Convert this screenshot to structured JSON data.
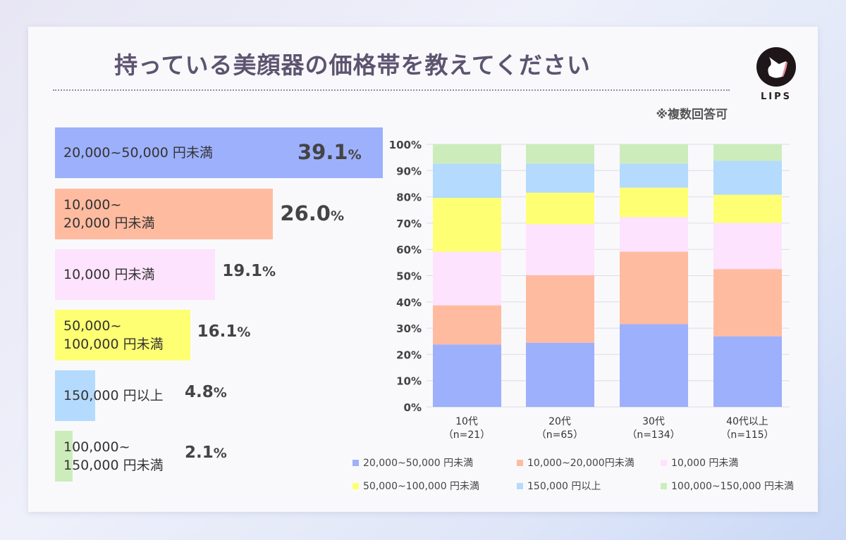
{
  "title": "持っている美顔器の価格帯を教えてください",
  "note": "※複数回答可",
  "logo": "LIPS",
  "colors": {
    "20000-50000": "#9db0fc",
    "10000-20000": "#ffbba0",
    "under10000": "#fde3fd",
    "50000-100000": "#feff73",
    "over150000": "#b4dafe",
    "100000-150000": "#ccedbb"
  },
  "chart_data": [
    {
      "type": "bar",
      "orientation": "horizontal",
      "categories": [
        "20,000~50,000 円未満",
        "10,000~\n20,000 円未満",
        "10,000 円未満",
        "50,000~\n100,000 円未満",
        "150,000 円以上",
        "100,000~\n150,000 円未満"
      ],
      "values": [
        39.1,
        26.0,
        19.1,
        16.1,
        4.8,
        2.1
      ],
      "value_labels": [
        "39.1",
        "26.0",
        "19.1",
        "16.1",
        "4.8",
        "2.1"
      ],
      "unit": "%"
    },
    {
      "type": "bar",
      "stacked": true,
      "categories": [
        "10代",
        "20代",
        "30代",
        "40代以上"
      ],
      "category_sub": [
        "（n=21）",
        "（n=65）",
        "（n=134）",
        "（n=115）"
      ],
      "yticks": [
        "0%",
        "10%",
        "20%",
        "30%",
        "40%",
        "50%",
        "60%",
        "70%",
        "80%",
        "90%",
        "100%"
      ],
      "ylim": [
        0,
        100
      ],
      "grid": true,
      "legend": "bottom",
      "series": [
        {
          "name": "20,000~50,000 円未満",
          "key": "20000-50000",
          "values": [
            23.8,
            24.4,
            31.5,
            26.9
          ]
        },
        {
          "name": "10,000~20,000円未満",
          "key": "10000-20000",
          "values": [
            14.9,
            25.8,
            27.6,
            25.6
          ]
        },
        {
          "name": "10,000 円未満",
          "key": "under10000",
          "values": [
            20.4,
            19.4,
            13.2,
            17.6
          ]
        },
        {
          "name": "50,000~100,000 円未満",
          "key": "50000-100000",
          "values": [
            20.5,
            12.0,
            11.2,
            10.7
          ]
        },
        {
          "name": "150,000 円以上",
          "key": "over150000",
          "values": [
            13.1,
            11.1,
            9.2,
            12.9
          ]
        },
        {
          "name": "100,000~150,000 円未満",
          "key": "100000-150000",
          "values": [
            7.3,
            7.3,
            7.3,
            6.3
          ]
        }
      ]
    }
  ]
}
